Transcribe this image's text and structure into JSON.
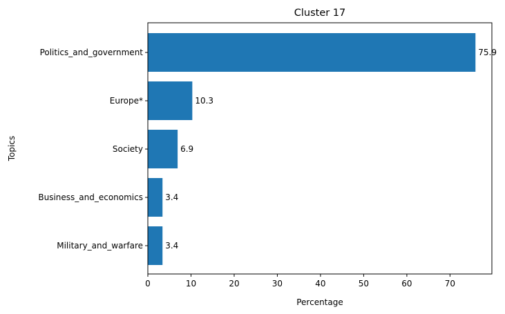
{
  "chart_data": {
    "type": "bar",
    "orientation": "horizontal",
    "title": "Cluster 17",
    "xlabel": "Percentage",
    "ylabel": "Topics",
    "categories": [
      "Politics_and_government",
      "Europe*",
      "Society",
      "Business_and_economics",
      "Military_and_warfare"
    ],
    "values": [
      75.9,
      10.3,
      6.9,
      3.4,
      3.4
    ],
    "value_labels": [
      "75.9",
      "10.3",
      "6.9",
      "3.4",
      "3.4"
    ],
    "xlim": [
      0,
      79.7
    ],
    "xticks": [
      0,
      10,
      20,
      30,
      40,
      50,
      60,
      70
    ],
    "grid": false,
    "bar_color": "#1f77b4"
  }
}
